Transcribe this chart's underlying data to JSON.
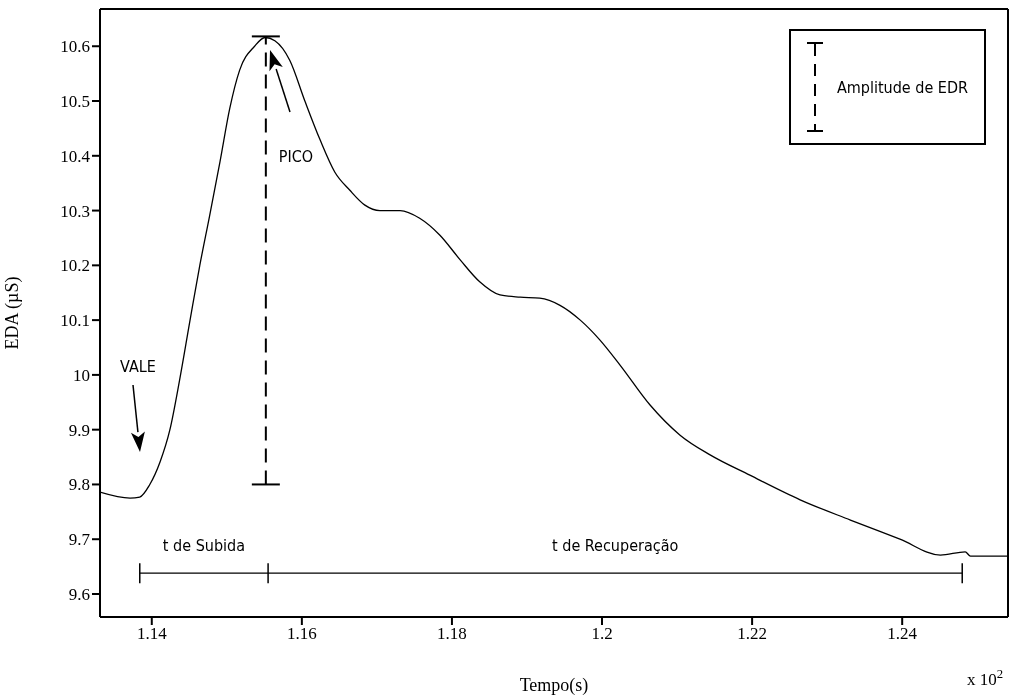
{
  "chart_data": {
    "type": "line",
    "xlabel": "Tempo(s)",
    "ylabel": "EDA (µS)",
    "xlim": [
      1.1331,
      1.2541
    ],
    "xticks": [
      1.14,
      1.16,
      1.18,
      {
        "value": 1.2,
        "label": "1.2"
      },
      1.22,
      1.24
    ],
    "ylim": [
      9.558,
      10.668
    ],
    "yticks": [
      9.6,
      9.7,
      9.8,
      9.9,
      {
        "value": 10,
        "label": "10"
      },
      10.1,
      10.2,
      10.3,
      10.4,
      10.5,
      10.6
    ],
    "legend": "top right",
    "grid": false,
    "series": [
      {
        "color": "#000000",
        "line_style": "solid",
        "x": [
          1.1331,
          1.1371,
          1.1384,
          1.1397,
          1.1411,
          1.1424,
          1.1437,
          1.1451,
          1.1464,
          1.1477,
          1.1491,
          1.1504,
          1.1517,
          1.1537,
          1.1551,
          1.1564,
          1.1584,
          1.1604,
          1.1624,
          1.1644,
          1.1664,
          1.1684,
          1.1704,
          1.1731,
          1.1757,
          1.1784,
          1.1811,
          1.1837,
          1.1864,
          1.1891,
          1.1917,
          1.1944,
          1.1971,
          1.1997,
          1.2024,
          1.2064,
          1.2104,
          1.2144,
          1.2197,
          1.2264,
          1.2331,
          1.2397,
          1.2451,
          1.2484,
          1.2491,
          1.2541
        ],
        "values": [
          9.786,
          9.775,
          9.777,
          9.799,
          9.841,
          9.899,
          9.99,
          10.1,
          10.2,
          10.29,
          10.39,
          10.487,
          10.556,
          10.6,
          10.616,
          10.61,
          10.574,
          10.5,
          10.43,
          10.37,
          10.337,
          10.31,
          10.3,
          10.3,
          10.286,
          10.255,
          10.21,
          10.17,
          10.146,
          10.142,
          10.14,
          10.127,
          10.1,
          10.064,
          10.018,
          9.945,
          9.89,
          9.854,
          9.817,
          9.772,
          9.735,
          9.7,
          9.671,
          9.677,
          9.669,
          9.669
        ]
      },
      {
        "name": "Amplitude de EDR",
        "color": "#000000",
        "line_style": "dashed",
        "x": [
          1.1552,
          1.1552
        ],
        "values": [
          9.8,
          10.618
        ]
      },
      {
        "color": "#000000",
        "line_style": "solid",
        "x": [
          1.1384,
          1.1555,
          1.248
        ],
        "values": [
          9.638,
          9.638,
          9.638
        ]
      }
    ],
    "annotations": [
      "VALE",
      "PICO",
      "t de Subida",
      "t de Recuperação",
      "x 10$^{2}$"
    ]
  }
}
